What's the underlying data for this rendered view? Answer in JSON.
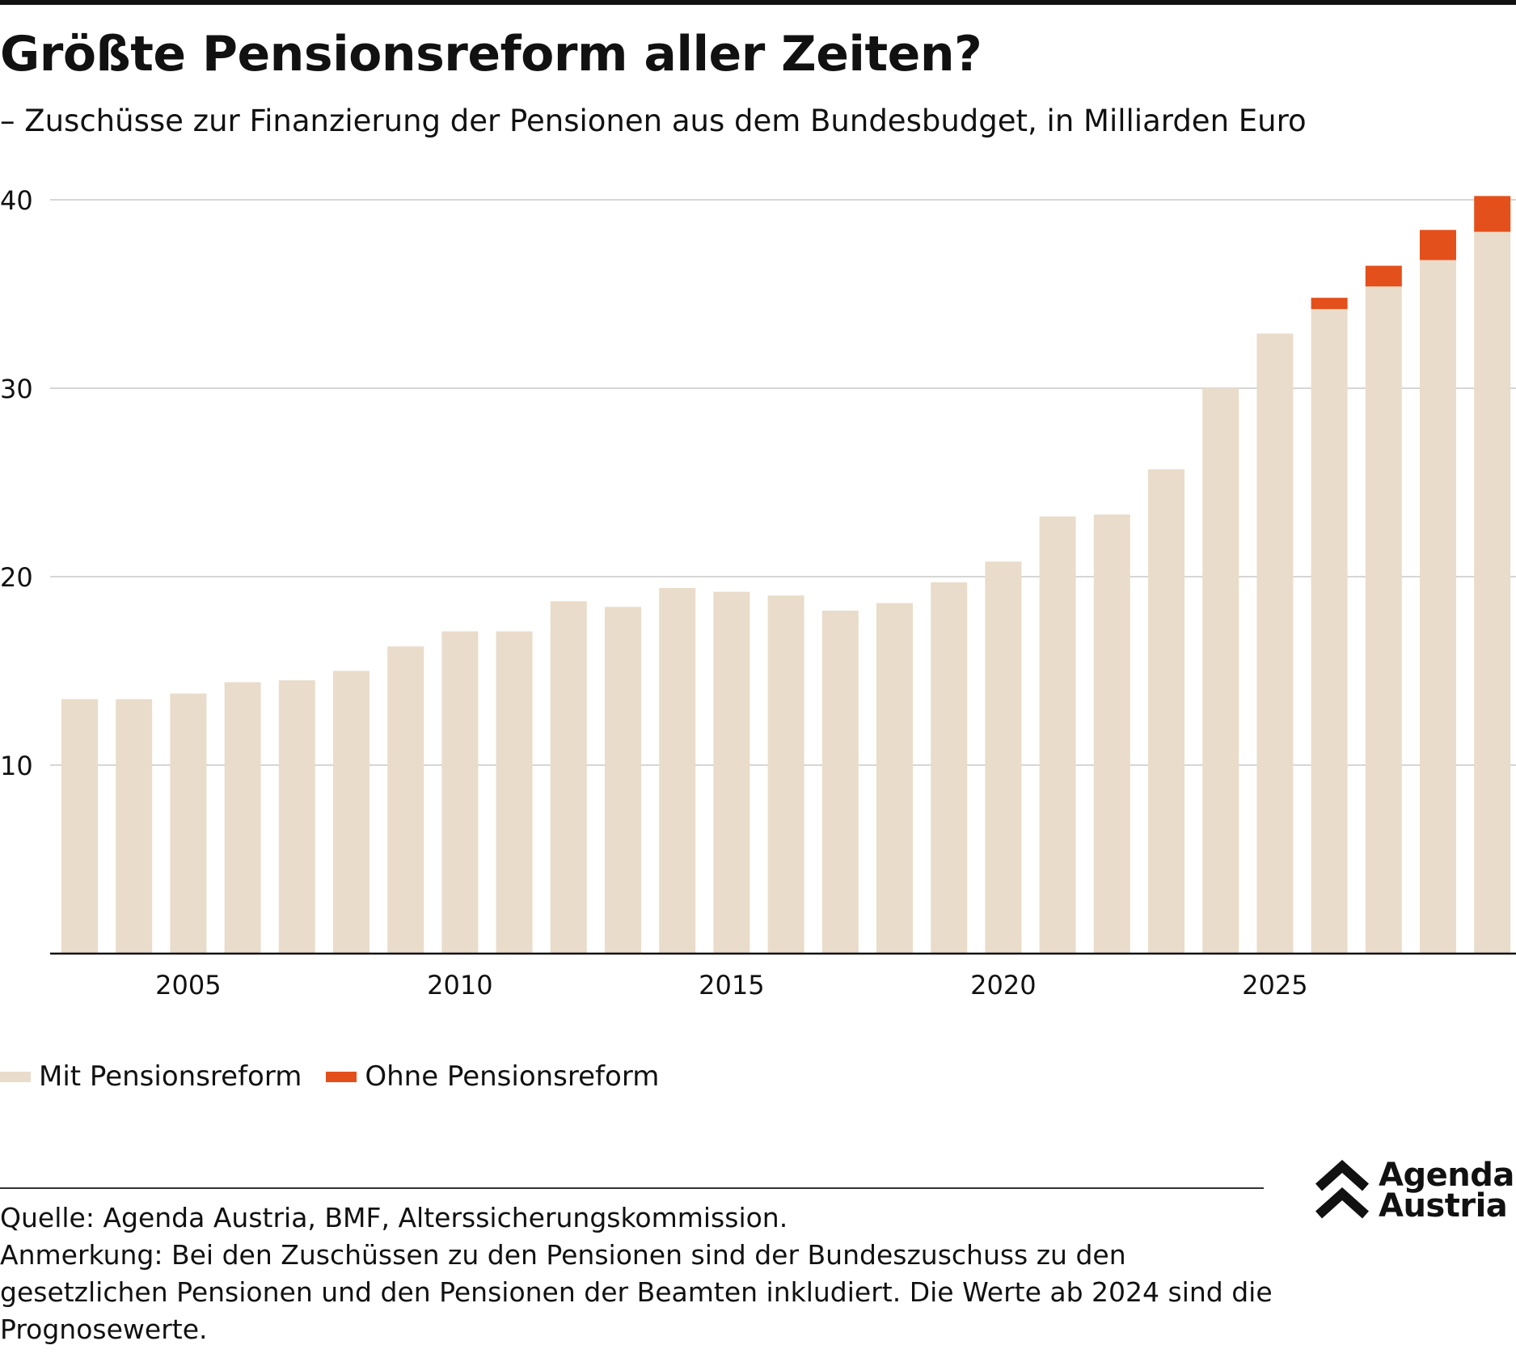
{
  "title": "Größte Pensionsreform aller Zeiten?",
  "subtitle": "– Zuschüsse zur Finanzierung der Pensionen aus dem Bundesbudget, in Milliarden Euro",
  "legend": {
    "reform_label": "Mit Pensionsreform",
    "no_reform_label": "Ohne Pensionsreform"
  },
  "source": {
    "line1": "Quelle: Agenda Austria, BMF, Alterssicherungskommission.",
    "line2": "Anmerkung: Bei den Zuschüssen zu den Pensionen sind der Bundeszuschuss zu den gesetzlichen Pensionen und den Pensionen der Beamten inkludiert. Die Werte ab 2024 sind die Prognosewerte."
  },
  "logo": {
    "line1": "Agenda",
    "line2": "Austria",
    "icon": "double-chevron-up-icon"
  },
  "colors": {
    "reform": "#EADCCA",
    "no_reform": "#E4501B",
    "grid": "#C8C8C8",
    "axis": "#111111",
    "text": "#111111"
  },
  "chart_data": {
    "type": "bar",
    "stacked": true,
    "categories": [
      2003,
      2004,
      2005,
      2006,
      2007,
      2008,
      2009,
      2010,
      2011,
      2012,
      2013,
      2014,
      2015,
      2016,
      2017,
      2018,
      2019,
      2020,
      2021,
      2022,
      2023,
      2024,
      2025,
      2026,
      2027,
      2028,
      2029
    ],
    "x_ticks": [
      2005,
      2010,
      2015,
      2020,
      2025
    ],
    "series": [
      {
        "name": "Mit Pensionsreform",
        "values": [
          13.5,
          13.5,
          13.8,
          14.4,
          14.5,
          15.0,
          16.3,
          17.1,
          17.1,
          18.7,
          18.4,
          19.4,
          19.2,
          19.0,
          18.2,
          18.6,
          19.7,
          20.8,
          23.2,
          23.3,
          25.7,
          30.0,
          32.9,
          34.2,
          35.4,
          36.8,
          38.3
        ]
      },
      {
        "name": "Ohne Pensionsreform",
        "values": [
          0,
          0,
          0,
          0,
          0,
          0,
          0,
          0,
          0,
          0,
          0,
          0,
          0,
          0,
          0,
          0,
          0,
          0,
          0,
          0,
          0,
          0,
          0,
          0.6,
          1.1,
          1.6,
          1.9
        ]
      }
    ],
    "ylim": [
      0,
      40
    ],
    "y_ticks": [
      10,
      20,
      30,
      40
    ],
    "grid": true,
    "legend_position": "bottom-left",
    "xlabel": "",
    "ylabel": ""
  }
}
